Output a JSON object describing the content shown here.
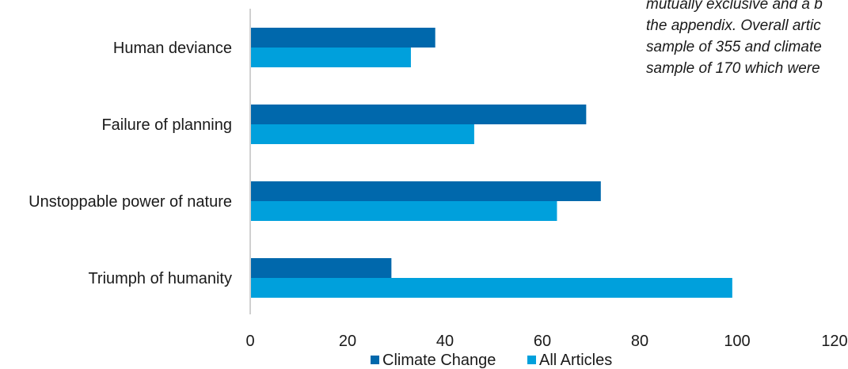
{
  "note_lines": [
    "mutually exclusive and a b",
    "the appendix. Overall artic",
    "sample of 355 and climate",
    "sample of 170 which were"
  ],
  "colors": {
    "climate_change": "#0068ac",
    "all_articles": "#00a0dc",
    "axis": "#d0d0d0"
  },
  "chart_data": {
    "type": "bar",
    "orientation": "horizontal",
    "categories": [
      "Human deviance",
      "Failure of planning",
      "Unstoppable power of nature",
      "Triumph of humanity"
    ],
    "series": [
      {
        "name": "Climate Change",
        "values": [
          38,
          69,
          72,
          29
        ]
      },
      {
        "name": "All Articles",
        "values": [
          33,
          46,
          63,
          99
        ]
      }
    ],
    "xlim": [
      0,
      120
    ],
    "x_ticks": [
      "0",
      "20",
      "40",
      "60",
      "80",
      "100",
      "120"
    ],
    "legend_position": "bottom",
    "grid": false
  }
}
